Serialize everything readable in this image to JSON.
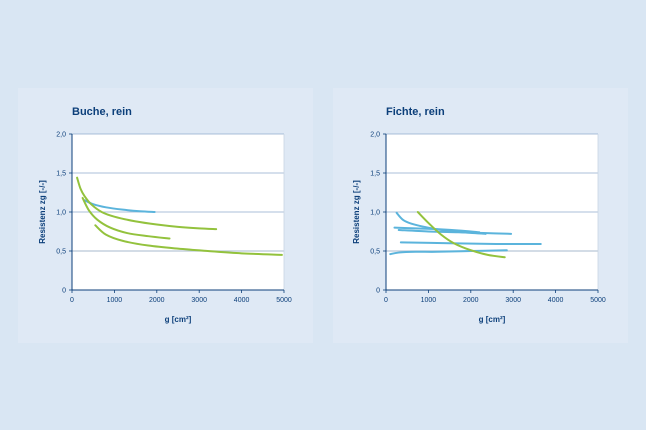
{
  "colors": {
    "background": "#d9e6f3",
    "panel": "#dfe9f5",
    "plot_area": "#ffffff",
    "grid": "#8faacb",
    "axis": "#0c3f7a",
    "text": "#0c3f7a",
    "blue_series": "#5bb4dc",
    "green_series": "#93c23d"
  },
  "chart_data": [
    {
      "type": "line",
      "title": "Buche, rein",
      "xlabel": "g [cm²]",
      "ylabel": "Resistenz zg [-/-]",
      "xlim": [
        0,
        5000
      ],
      "ylim": [
        0,
        2.0
      ],
      "xticks": [
        0,
        1000,
        2000,
        3000,
        4000,
        5000
      ],
      "xtick_labels": [
        "0",
        "1000",
        "2000",
        "3000",
        "4000",
        "5000"
      ],
      "yticks": [
        0,
        0.5,
        1.0,
        1.5,
        2.0
      ],
      "ytick_labels": [
        "0",
        "0,5",
        "1,0",
        "1,5",
        "2,0"
      ],
      "grid": true,
      "series": [
        {
          "color": "blue",
          "x": [
            300,
            500,
            800,
            1200,
            1600,
            1950
          ],
          "y": [
            1.15,
            1.1,
            1.06,
            1.03,
            1.01,
            1.0
          ]
        },
        {
          "color": "green",
          "x": [
            120,
            200,
            300,
            450,
            700,
            1000,
            1500,
            2000,
            2500,
            3000,
            3400
          ],
          "y": [
            1.44,
            1.3,
            1.2,
            1.1,
            1.0,
            0.94,
            0.88,
            0.84,
            0.81,
            0.79,
            0.78
          ]
        },
        {
          "color": "green",
          "x": [
            250,
            400,
            600,
            900,
            1300,
            1800,
            2300
          ],
          "y": [
            1.18,
            1.02,
            0.9,
            0.8,
            0.73,
            0.69,
            0.66
          ]
        },
        {
          "color": "green",
          "x": [
            550,
            800,
            1200,
            1800,
            2500,
            3200,
            4000,
            4950
          ],
          "y": [
            0.83,
            0.71,
            0.63,
            0.57,
            0.53,
            0.5,
            0.47,
            0.45
          ]
        }
      ]
    },
    {
      "type": "line",
      "title": "Fichte, rein",
      "xlabel": "g [cm²]",
      "ylabel": "Resistenz zg [-/-]",
      "xlim": [
        0,
        5000
      ],
      "ylim": [
        0,
        2.0
      ],
      "xticks": [
        0,
        1000,
        2000,
        3000,
        4000,
        5000
      ],
      "xtick_labels": [
        "0",
        "1000",
        "2000",
        "3000",
        "4000",
        "5000"
      ],
      "yticks": [
        0,
        0.5,
        1.0,
        1.5,
        2.0
      ],
      "ytick_labels": [
        "0",
        "0,5",
        "1,0",
        "1,5",
        "2,0"
      ],
      "grid": true,
      "series": [
        {
          "color": "blue",
          "x": [
            250,
            400,
            600,
            900,
            1300,
            1800,
            2350
          ],
          "y": [
            0.99,
            0.9,
            0.85,
            0.81,
            0.77,
            0.74,
            0.72
          ]
        },
        {
          "color": "blue",
          "x": [
            200,
            700,
            1200,
            1800,
            2200
          ],
          "y": [
            0.8,
            0.79,
            0.78,
            0.76,
            0.74
          ]
        },
        {
          "color": "blue",
          "x": [
            300,
            1000,
            1700,
            2300,
            2950
          ],
          "y": [
            0.77,
            0.75,
            0.74,
            0.73,
            0.72
          ]
        },
        {
          "color": "blue",
          "x": [
            350,
            1500,
            2600,
            3650
          ],
          "y": [
            0.61,
            0.6,
            0.59,
            0.59
          ]
        },
        {
          "color": "blue",
          "x": [
            100,
            300,
            700,
            1200,
            2000,
            2850
          ],
          "y": [
            0.46,
            0.48,
            0.49,
            0.49,
            0.5,
            0.51
          ]
        },
        {
          "color": "green",
          "x": [
            750,
            1000,
            1300,
            1600,
            2000,
            2400,
            2800
          ],
          "y": [
            1.0,
            0.86,
            0.71,
            0.6,
            0.51,
            0.45,
            0.42
          ]
        }
      ]
    }
  ]
}
